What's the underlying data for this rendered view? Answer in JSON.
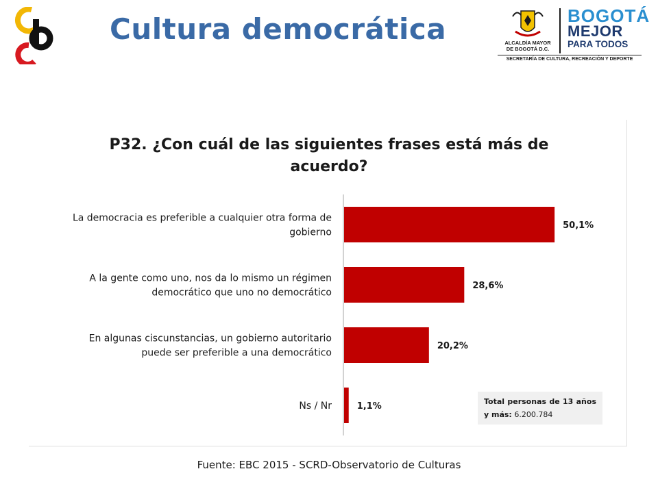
{
  "page": {
    "title": "Cultura democrática",
    "source": "Fuente: EBC 2015 - SCRD-Observatorio de Culturas"
  },
  "logos": {
    "left_name": "ceb-logo",
    "right": {
      "alcaldia": "ALCALDÍA MAYOR\nDE BOGOTÁ D.C.",
      "bogota": "BOGOTÁ",
      "mejor": "MEJOR",
      "para_todos": "PARA TODOS",
      "secretaria": "SECRETARÍA DE CULTURA, RECREACIÓN Y DEPORTE"
    }
  },
  "colors": {
    "title": "#3a6aa6",
    "bar": "#c00000",
    "axis": "#a6a6a6",
    "logo_yellow": "#f2b705",
    "logo_red": "#d71920",
    "logo_black": "#111111"
  },
  "note": {
    "label": "Total personas de 13 años y más:",
    "value": "6.200.784"
  },
  "chart_data": {
    "type": "bar",
    "orientation": "horizontal",
    "title": "P32. ¿Con cuál de las siguientes frases está más de acuerdo?",
    "categories": [
      [
        "La democracia es preferible a cualquier otra forma de",
        "gobierno"
      ],
      [
        "A la gente como uno, nos da lo mismo un régimen",
        "democrático que uno no democrático"
      ],
      [
        "En algunas ciscunstancias, un gobierno autoritario",
        "puede ser preferible a una democrático"
      ],
      [
        "Ns / Nr"
      ]
    ],
    "values": [
      50.1,
      28.6,
      20.2,
      1.1
    ],
    "value_labels": [
      "50,1%",
      "28,6%",
      "20,2%",
      "1,1%"
    ],
    "unit": "%",
    "xlim": [
      0,
      61.5
    ],
    "grid": false,
    "legend": "none"
  }
}
